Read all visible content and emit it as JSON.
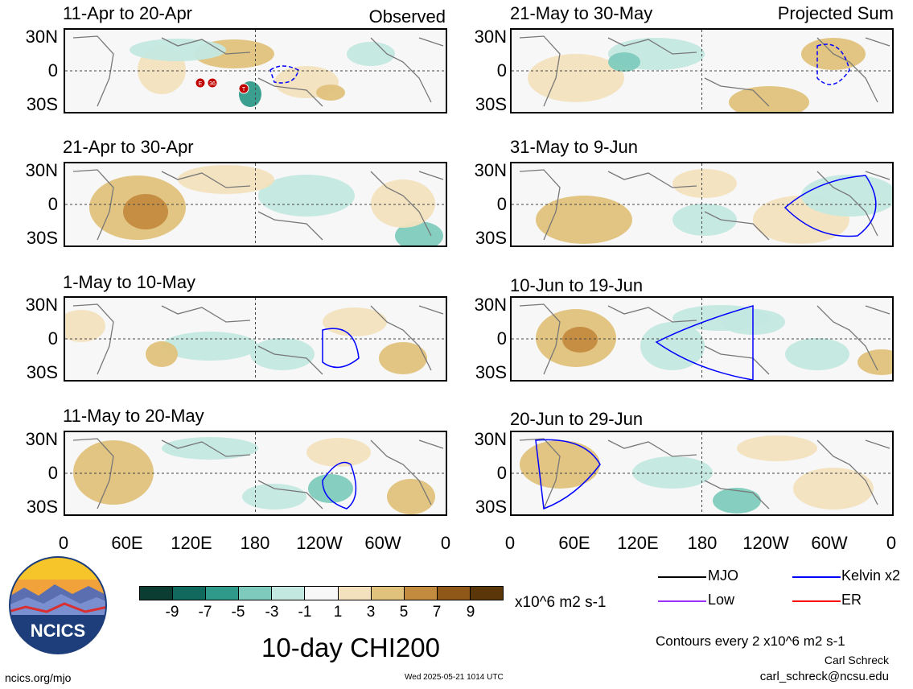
{
  "panels": [
    {
      "title": "11-Apr to 20-Apr",
      "tag": "Observed"
    },
    {
      "title": "21-Apr to 30-Apr",
      "tag": ""
    },
    {
      "title": "1-May to 10-May",
      "tag": ""
    },
    {
      "title": "11-May to 20-May",
      "tag": ""
    },
    {
      "title": "21-May to 30-May",
      "tag": "Projected Sum"
    },
    {
      "title": "31-May to 9-Jun",
      "tag": ""
    },
    {
      "title": "10-Jun to 19-Jun",
      "tag": ""
    },
    {
      "title": "20-Jun to 29-Jun",
      "tag": ""
    }
  ],
  "lat_labels": [
    "30N",
    "0",
    "30S"
  ],
  "lon_labels": [
    "0",
    "60E",
    "120E",
    "180",
    "120W",
    "60W",
    "0"
  ],
  "storm_markers": [
    "E",
    "36",
    "T"
  ],
  "colorbar": {
    "colors": [
      "#0b3d33",
      "#11695e",
      "#2f9a89",
      "#7ecbbd",
      "#c3e8e0",
      "#f7f7f7",
      "#f3e1bd",
      "#e0c27c",
      "#c38b3e",
      "#8f5818",
      "#5b3609"
    ],
    "labels": [
      "-9",
      "-7",
      "-5",
      "-3",
      "-1",
      "1",
      "3",
      "5",
      "7",
      "9"
    ],
    "units": "x10^6 m2 s-1"
  },
  "title": "10-day CHI200",
  "legend": [
    {
      "label": "MJO",
      "color": "#000000",
      "style": "solid"
    },
    {
      "label": "Kelvin x2",
      "color": "#0000ff",
      "style": "solid"
    },
    {
      "label": "Low",
      "color": "#9b30ff",
      "style": "solid"
    },
    {
      "label": "ER",
      "color": "#ff0000",
      "style": "solid"
    }
  ],
  "contour_note": "Contours every 2 x10^6 m2 s-1",
  "author_name": "Carl Schreck",
  "author_email": "carl_schreck@ncsu.edu",
  "website": "ncics.org/mjo",
  "timestamp": "Wed 2025-05-21 1014 UTC",
  "logo_text": "NCICS"
}
